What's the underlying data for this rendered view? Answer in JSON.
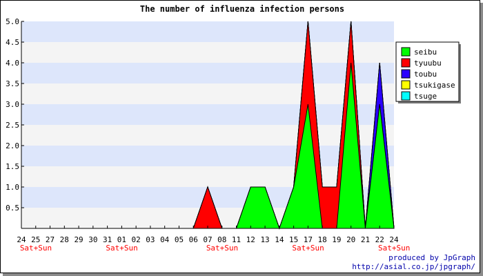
{
  "chart_data": {
    "type": "area",
    "title": "The number of influenza infection persons",
    "xlabel": "",
    "ylabel": "",
    "ylim": [
      0,
      5
    ],
    "y_ticks": [
      "0.5",
      "1.0",
      "1.5",
      "2.0",
      "2.5",
      "3.0",
      "3.5",
      "4.0",
      "4.5",
      "5.0"
    ],
    "y_tick_values": [
      0.5,
      1.0,
      1.5,
      2.0,
      2.5,
      3.0,
      3.5,
      4.0,
      4.5,
      5.0
    ],
    "categories": [
      "24",
      "25",
      "27",
      "28",
      "29",
      "30",
      "31",
      "01",
      "02",
      "03",
      "04",
      "05",
      "06",
      "07",
      "08",
      "11",
      "12",
      "13",
      "14",
      "15",
      "17",
      "18",
      "19",
      "20",
      "21",
      "22",
      "24"
    ],
    "weekend_labels": [
      {
        "index": 0,
        "text": "Sat+Sun"
      },
      {
        "index": 6,
        "text": "Sat+Sun"
      },
      {
        "index": 13,
        "text": "Sat+Sun"
      },
      {
        "index": 19,
        "text": "Sat+Sun"
      },
      {
        "index": 25,
        "text": "Sat+Sun"
      }
    ],
    "stacked": true,
    "series": [
      {
        "name": "seibu",
        "color": "#00ff00",
        "values": [
          0,
          0,
          0,
          0,
          0,
          0,
          0,
          0,
          0,
          0,
          0,
          0,
          0,
          0,
          0,
          0,
          1,
          1,
          0,
          1,
          3,
          0,
          0,
          4,
          0,
          3,
          0
        ]
      },
      {
        "name": "tyuubu",
        "color": "#ff0000",
        "values": [
          0,
          0,
          0,
          0,
          0,
          0,
          0,
          0,
          0,
          0,
          0,
          0,
          0,
          1,
          0,
          0,
          0,
          0,
          0,
          0,
          2,
          1,
          1,
          1,
          0,
          0,
          0
        ]
      },
      {
        "name": "toubu",
        "color": "#2a00ff",
        "values": [
          0,
          0,
          0,
          0,
          0,
          0,
          0,
          0,
          0,
          0,
          0,
          0,
          0,
          0,
          0,
          0,
          0,
          0,
          0,
          0,
          0,
          0,
          0,
          0,
          0,
          1,
          0
        ]
      },
      {
        "name": "tsukigase",
        "color": "#ffff00",
        "values": [
          0,
          0,
          0,
          0,
          0,
          0,
          0,
          0,
          0,
          0,
          0,
          0,
          0,
          0,
          0,
          0,
          0,
          0,
          0,
          0,
          0,
          0,
          0,
          0,
          0,
          0,
          0
        ]
      },
      {
        "name": "tsuge",
        "color": "#00ffff",
        "values": [
          0,
          0,
          0,
          0,
          0,
          0,
          0,
          0,
          0,
          0,
          0,
          0,
          0,
          0,
          0,
          0,
          0,
          0,
          0,
          0,
          0,
          0,
          0,
          0,
          0,
          0,
          0
        ]
      }
    ],
    "grid": true,
    "band_colors": [
      "#f4f4f4",
      "#dde6fb"
    ],
    "legend_position": "right"
  },
  "credit": {
    "line1": "produced by JpGraph",
    "line2": "http://asial.co.jp/jpgraph/"
  }
}
